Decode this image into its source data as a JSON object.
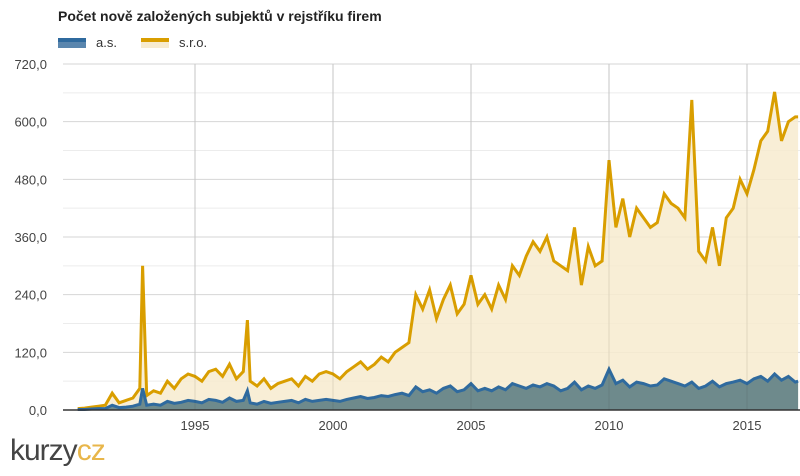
{
  "title": "Počet nově založených subjektů v rejstříku firem",
  "legend": [
    {
      "label": "a.s.",
      "line_color": "#2f6a9e",
      "fill_color": "#6e8a8c"
    },
    {
      "label": "s.r.o.",
      "line_color": "#d99e00",
      "fill_color": "#f7ebcf"
    }
  ],
  "logo": {
    "part1": "kurzy",
    "part2": "cz"
  },
  "chart_data": {
    "type": "area",
    "title": "Počet nově založených subjektů v rejstříku firem",
    "xlabel": "",
    "ylabel": "",
    "ylim": [
      0,
      720
    ],
    "xlim": [
      1990.5,
      2016.85
    ],
    "y_ticks": [
      "0,0",
      "120,0",
      "240,0",
      "360,0",
      "480,0",
      "600,0",
      "720,0"
    ],
    "x_ticks": [
      "1995",
      "2000",
      "2005",
      "2010",
      "2015"
    ],
    "grid": true,
    "legend_position": "top-left",
    "x": [
      1990.75,
      1991.0,
      1991.25,
      1991.5,
      1991.75,
      1992.0,
      1992.25,
      1992.5,
      1992.75,
      1993.0,
      1993.1,
      1993.25,
      1993.5,
      1993.75,
      1994.0,
      1994.25,
      1994.5,
      1994.75,
      1995.0,
      1995.25,
      1995.5,
      1995.75,
      1996.0,
      1996.25,
      1996.5,
      1996.75,
      1996.9,
      1997.0,
      1997.25,
      1997.5,
      1997.75,
      1998.0,
      1998.25,
      1998.5,
      1998.75,
      1999.0,
      1999.25,
      1999.5,
      1999.75,
      2000.0,
      2000.25,
      2000.5,
      2000.75,
      2001.0,
      2001.25,
      2001.5,
      2001.75,
      2002.0,
      2002.25,
      2002.5,
      2002.75,
      2003.0,
      2003.25,
      2003.5,
      2003.75,
      2004.0,
      2004.25,
      2004.5,
      2004.75,
      2005.0,
      2005.25,
      2005.5,
      2005.75,
      2006.0,
      2006.25,
      2006.5,
      2006.75,
      2007.0,
      2007.25,
      2007.5,
      2007.75,
      2008.0,
      2008.25,
      2008.5,
      2008.75,
      2009.0,
      2009.25,
      2009.5,
      2009.75,
      2010.0,
      2010.25,
      2010.5,
      2010.75,
      2011.0,
      2011.25,
      2011.5,
      2011.75,
      2012.0,
      2012.25,
      2012.5,
      2012.75,
      2013.0,
      2013.25,
      2013.5,
      2013.75,
      2014.0,
      2014.25,
      2014.5,
      2014.75,
      2015.0,
      2015.25,
      2015.5,
      2015.75,
      2016.0,
      2016.25,
      2016.5,
      2016.75,
      2016.85
    ],
    "series": [
      {
        "name": "s.r.o.",
        "values": [
          3,
          4,
          6,
          8,
          10,
          35,
          15,
          20,
          25,
          45,
          300,
          30,
          40,
          35,
          60,
          45,
          65,
          75,
          70,
          60,
          80,
          85,
          70,
          95,
          65,
          80,
          187,
          60,
          50,
          65,
          45,
          55,
          60,
          65,
          50,
          70,
          60,
          75,
          80,
          75,
          65,
          80,
          90,
          100,
          85,
          95,
          110,
          100,
          120,
          130,
          140,
          240,
          210,
          250,
          190,
          230,
          260,
          200,
          220,
          280,
          220,
          240,
          210,
          260,
          230,
          300,
          280,
          320,
          350,
          330,
          360,
          310,
          300,
          290,
          380,
          260,
          340,
          300,
          310,
          520,
          380,
          440,
          360,
          420,
          400,
          380,
          390,
          450,
          430,
          420,
          400,
          645,
          330,
          310,
          380,
          300,
          400,
          420,
          480,
          450,
          500,
          560,
          580,
          662,
          560,
          600,
          610,
          610
        ]
      },
      {
        "name": "a.s.",
        "values": [
          1,
          1,
          2,
          3,
          3,
          10,
          5,
          6,
          8,
          12,
          45,
          10,
          12,
          10,
          18,
          14,
          16,
          20,
          18,
          15,
          22,
          20,
          16,
          25,
          18,
          20,
          40,
          15,
          12,
          18,
          14,
          16,
          18,
          20,
          15,
          22,
          18,
          20,
          22,
          20,
          18,
          22,
          25,
          28,
          24,
          26,
          30,
          28,
          32,
          35,
          30,
          48,
          38,
          42,
          35,
          45,
          50,
          38,
          42,
          55,
          40,
          45,
          40,
          48,
          42,
          55,
          50,
          45,
          52,
          48,
          55,
          50,
          40,
          45,
          58,
          42,
          50,
          45,
          52,
          85,
          55,
          62,
          48,
          58,
          55,
          50,
          52,
          65,
          60,
          55,
          50,
          58,
          45,
          50,
          60,
          48,
          55,
          58,
          62,
          55,
          65,
          70,
          60,
          75,
          62,
          70,
          58,
          60
        ]
      }
    ]
  }
}
